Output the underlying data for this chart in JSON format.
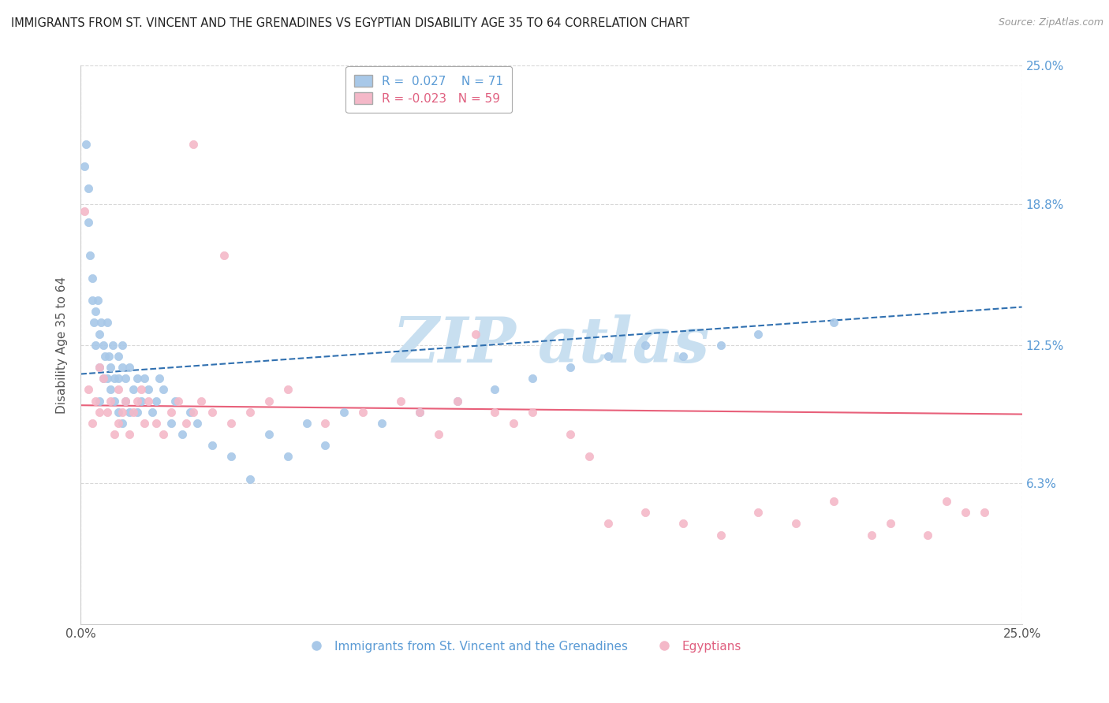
{
  "title": "IMMIGRANTS FROM ST. VINCENT AND THE GRENADINES VS EGYPTIAN DISABILITY AGE 35 TO 64 CORRELATION CHART",
  "source": "Source: ZipAtlas.com",
  "ylabel": "Disability Age 35 to 64",
  "xlim": [
    0.0,
    25.0
  ],
  "ylim": [
    0.0,
    25.0
  ],
  "xtick_labels": [
    "0.0%",
    "25.0%"
  ],
  "ytick_vals": [
    6.3,
    12.5,
    18.8,
    25.0
  ],
  "ytick_labels": [
    "6.3%",
    "12.5%",
    "18.8%",
    "25.0%"
  ],
  "blue_R": 0.027,
  "blue_N": 71,
  "pink_R": -0.023,
  "pink_N": 59,
  "blue_color": "#a8c8e8",
  "pink_color": "#f4b8c8",
  "blue_line_color": "#3070b0",
  "pink_line_color": "#e8607a",
  "blue_line_start_y": 11.2,
  "blue_line_end_y": 14.2,
  "pink_line_start_y": 9.8,
  "pink_line_end_y": 9.4,
  "legend_label_blue": "Immigrants from St. Vincent and the Grenadines",
  "legend_label_pink": "Egyptians",
  "watermark_text": "ZIP atlas",
  "watermark_color": "#c8dff0",
  "background_color": "#ffffff",
  "grid_color": "#d8d8d8",
  "blue_x": [
    0.1,
    0.15,
    0.2,
    0.2,
    0.25,
    0.3,
    0.3,
    0.35,
    0.4,
    0.4,
    0.45,
    0.5,
    0.5,
    0.5,
    0.55,
    0.6,
    0.6,
    0.65,
    0.7,
    0.7,
    0.75,
    0.8,
    0.8,
    0.85,
    0.9,
    0.9,
    1.0,
    1.0,
    1.0,
    1.1,
    1.1,
    1.1,
    1.2,
    1.2,
    1.3,
    1.3,
    1.4,
    1.5,
    1.5,
    1.6,
    1.7,
    1.8,
    1.9,
    2.0,
    2.1,
    2.2,
    2.4,
    2.5,
    2.7,
    2.9,
    3.1,
    3.5,
    4.0,
    4.5,
    5.0,
    5.5,
    6.0,
    6.5,
    7.0,
    8.0,
    9.0,
    10.0,
    11.0,
    12.0,
    13.0,
    14.0,
    15.0,
    16.0,
    17.0,
    18.0,
    20.0
  ],
  "blue_y": [
    20.5,
    21.5,
    19.5,
    18.0,
    16.5,
    15.5,
    14.5,
    13.5,
    14.0,
    12.5,
    14.5,
    13.0,
    11.5,
    10.0,
    13.5,
    12.5,
    11.0,
    12.0,
    13.5,
    11.0,
    12.0,
    11.5,
    10.5,
    12.5,
    11.0,
    10.0,
    12.0,
    11.0,
    9.5,
    12.5,
    11.5,
    9.0,
    11.0,
    10.0,
    11.5,
    9.5,
    10.5,
    11.0,
    9.5,
    10.0,
    11.0,
    10.5,
    9.5,
    10.0,
    11.0,
    10.5,
    9.0,
    10.0,
    8.5,
    9.5,
    9.0,
    8.0,
    7.5,
    6.5,
    8.5,
    7.5,
    9.0,
    8.0,
    9.5,
    9.0,
    9.5,
    10.0,
    10.5,
    11.0,
    11.5,
    12.0,
    12.5,
    12.0,
    12.5,
    13.0,
    13.5
  ],
  "pink_x": [
    0.1,
    0.2,
    0.3,
    0.4,
    0.5,
    0.5,
    0.6,
    0.7,
    0.8,
    0.9,
    1.0,
    1.0,
    1.1,
    1.2,
    1.3,
    1.4,
    1.5,
    1.6,
    1.7,
    1.8,
    2.0,
    2.2,
    2.4,
    2.6,
    2.8,
    3.0,
    3.0,
    3.2,
    3.5,
    3.8,
    4.0,
    4.5,
    5.0,
    5.5,
    6.5,
    7.5,
    8.5,
    9.0,
    9.5,
    10.0,
    10.5,
    11.0,
    11.5,
    12.0,
    13.0,
    13.5,
    14.0,
    15.0,
    16.0,
    17.0,
    18.0,
    19.0,
    20.0,
    21.0,
    21.5,
    22.5,
    23.0,
    23.5,
    24.0
  ],
  "pink_y": [
    18.5,
    10.5,
    9.0,
    10.0,
    11.5,
    9.5,
    11.0,
    9.5,
    10.0,
    8.5,
    10.5,
    9.0,
    9.5,
    10.0,
    8.5,
    9.5,
    10.0,
    10.5,
    9.0,
    10.0,
    9.0,
    8.5,
    9.5,
    10.0,
    9.0,
    9.5,
    21.5,
    10.0,
    9.5,
    16.5,
    9.0,
    9.5,
    10.0,
    10.5,
    9.0,
    9.5,
    10.0,
    9.5,
    8.5,
    10.0,
    13.0,
    9.5,
    9.0,
    9.5,
    8.5,
    7.5,
    4.5,
    5.0,
    4.5,
    4.0,
    5.0,
    4.5,
    5.5,
    4.0,
    4.5,
    4.0,
    5.5,
    5.0,
    5.0
  ]
}
